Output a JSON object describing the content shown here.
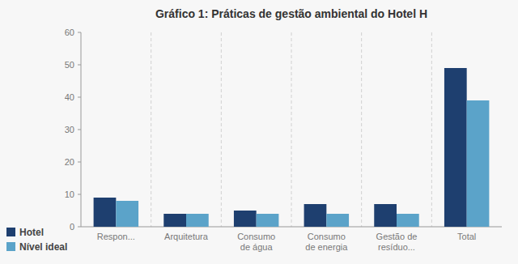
{
  "chart_data": {
    "type": "bar",
    "title": "Gráfico 1: Práticas de gestão ambiental do Hotel H",
    "categories": [
      "Respon...",
      "Arquitetura",
      "Consumo\nde água",
      "Consumo\nde energia",
      "Gestão de\nresíduo...",
      "Total"
    ],
    "series": [
      {
        "name": "Hotel",
        "color": "#1e3f6f",
        "values": [
          9,
          4,
          5,
          7,
          7,
          49
        ]
      },
      {
        "name": "Nível ideal",
        "color": "#5ba3c9",
        "values": [
          8,
          4,
          4,
          4,
          4,
          39
        ]
      }
    ],
    "ylim": [
      0,
      60
    ],
    "yticks": [
      0,
      10,
      20,
      30,
      40,
      50,
      60
    ]
  }
}
